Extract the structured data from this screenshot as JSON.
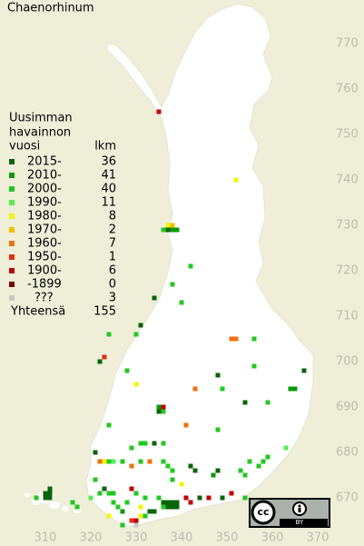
{
  "title": "Chaenorhinum",
  "legend": {
    "heading": [
      "Uusimman",
      "havainnon",
      "vuosi"
    ],
    "count_header": "lkm",
    "items": [
      {
        "label": "2015-",
        "count": 36,
        "color": "#0a640a"
      },
      {
        "label": "2010-",
        "count": 41,
        "color": "#0a9a0a"
      },
      {
        "label": "2000-",
        "count": 40,
        "color": "#22c822"
      },
      {
        "label": "1990-",
        "count": 11,
        "color": "#55ee55"
      },
      {
        "label": "1980-",
        "count": 8,
        "color": "#f5f500"
      },
      {
        "label": "1970-",
        "count": 2,
        "color": "#f0c000"
      },
      {
        "label": "1960-",
        "count": 7,
        "color": "#f07010"
      },
      {
        "label": "1950-",
        "count": 1,
        "color": "#e03010"
      },
      {
        "label": "1900-",
        "count": 6,
        "color": "#c00000"
      },
      {
        "label": "-1899",
        "count": 0,
        "color": "#7a0000"
      },
      {
        "label": "???",
        "count": 3,
        "color": "#c8c8c8"
      }
    ],
    "total_label": "Yhteensä",
    "total": 155
  },
  "x_ticks": [
    310,
    320,
    330,
    340,
    350,
    360,
    370
  ],
  "y_ticks": [
    770,
    760,
    750,
    740,
    730,
    720,
    710,
    700,
    690,
    680,
    670
  ],
  "license": {
    "mark": "cc",
    "type": "BY"
  },
  "cells": [
    [
      335,
      755,
      8
    ],
    [
      352,
      740,
      4
    ],
    [
      337,
      730,
      4
    ],
    [
      338,
      730,
      5
    ],
    [
      336,
      729,
      2
    ],
    [
      337,
      729,
      0
    ],
    [
      338,
      729,
      1
    ],
    [
      339,
      729,
      1
    ],
    [
      342,
      721,
      2
    ],
    [
      338,
      717,
      2
    ],
    [
      334,
      714,
      0
    ],
    [
      340,
      713,
      2
    ],
    [
      331,
      708,
      0
    ],
    [
      330,
      706,
      2
    ],
    [
      324,
      706,
      2
    ],
    [
      351,
      705,
      6
    ],
    [
      352,
      705,
      6
    ],
    [
      356,
      705,
      2
    ],
    [
      323,
      701,
      7
    ],
    [
      322,
      700,
      0
    ],
    [
      367,
      698,
      0
    ],
    [
      356,
      699,
      2
    ],
    [
      348,
      697,
      0
    ],
    [
      328,
      698,
      2
    ],
    [
      330,
      695,
      4
    ],
    [
      343,
      694,
      6
    ],
    [
      349,
      694,
      2
    ],
    [
      364,
      694,
      1
    ],
    [
      365,
      694,
      1
    ],
    [
      336,
      690,
      8
    ],
    [
      335,
      690,
      1
    ],
    [
      354,
      691,
      0
    ],
    [
      359,
      691,
      2
    ],
    [
      335,
      689,
      0
    ],
    [
      336,
      689,
      2
    ],
    [
      341,
      686,
      6
    ],
    [
      324,
      686,
      2
    ],
    [
      348,
      685,
      2
    ],
    [
      363,
      681,
      3
    ],
    [
      331,
      682,
      2
    ],
    [
      332,
      682,
      2
    ],
    [
      334,
      682,
      0
    ],
    [
      336,
      682,
      2
    ],
    [
      329,
      681,
      2
    ],
    [
      321,
      680,
      0
    ],
    [
      322,
      678,
      6
    ],
    [
      323,
      678,
      4
    ],
    [
      324,
      678,
      2
    ],
    [
      325,
      678,
      3
    ],
    [
      327,
      678,
      2
    ],
    [
      331,
      678,
      2
    ],
    [
      333,
      678,
      6
    ],
    [
      336,
      678,
      2
    ],
    [
      337,
      677,
      2
    ],
    [
      338,
      676,
      2
    ],
    [
      329,
      677,
      6
    ],
    [
      342,
      677,
      0
    ],
    [
      343,
      676,
      0
    ],
    [
      355,
      678,
      2
    ],
    [
      358,
      678,
      2
    ],
    [
      357,
      677,
      2
    ],
    [
      359,
      679,
      2
    ],
    [
      348,
      676,
      0
    ],
    [
      347,
      675,
      1
    ],
    [
      353,
      676,
      2
    ],
    [
      354,
      675,
      2
    ],
    [
      338,
      674,
      2
    ],
    [
      340,
      673,
      4
    ],
    [
      321,
      674,
      2
    ],
    [
      311,
      672,
      0
    ],
    [
      311,
      671,
      0
    ],
    [
      310,
      670,
      0
    ],
    [
      311,
      670,
      0
    ],
    [
      308,
      670,
      2
    ],
    [
      323,
      672,
      0
    ],
    [
      324,
      671,
      2
    ],
    [
      325,
      671,
      2
    ],
    [
      322,
      671,
      2
    ],
    [
      329,
      672,
      8
    ],
    [
      330,
      671,
      2
    ],
    [
      332,
      670,
      2
    ],
    [
      335,
      670,
      2
    ],
    [
      336,
      669,
      0
    ],
    [
      337,
      669,
      0
    ],
    [
      338,
      669,
      0
    ],
    [
      339,
      669,
      0
    ],
    [
      338,
      668,
      0
    ],
    [
      339,
      668,
      0
    ],
    [
      337,
      668,
      0
    ],
    [
      341,
      670,
      8
    ],
    [
      342,
      669,
      8
    ],
    [
      344,
      670,
      0
    ],
    [
      346,
      670,
      8
    ],
    [
      349,
      670,
      0
    ],
    [
      351,
      671,
      8
    ],
    [
      354,
      670,
      2
    ],
    [
      325,
      669,
      2
    ],
    [
      326,
      668,
      2
    ],
    [
      327,
      664,
      2
    ],
    [
      329,
      665,
      7
    ],
    [
      330,
      665,
      8
    ],
    [
      331,
      666,
      4
    ],
    [
      332,
      666,
      2
    ],
    [
      333,
      667,
      0
    ],
    [
      334,
      667,
      0
    ],
    [
      336,
      668,
      2
    ],
    [
      331,
      668,
      4
    ],
    [
      328,
      669,
      2
    ],
    [
      324,
      666,
      4
    ],
    [
      317,
      668,
      2
    ],
    [
      316,
      669,
      2
    ],
    [
      320,
      670,
      3
    ],
    [
      310,
      671,
      0
    ],
    [
      330,
      664,
      10
    ],
    [
      327,
      667,
      1
    ]
  ]
}
